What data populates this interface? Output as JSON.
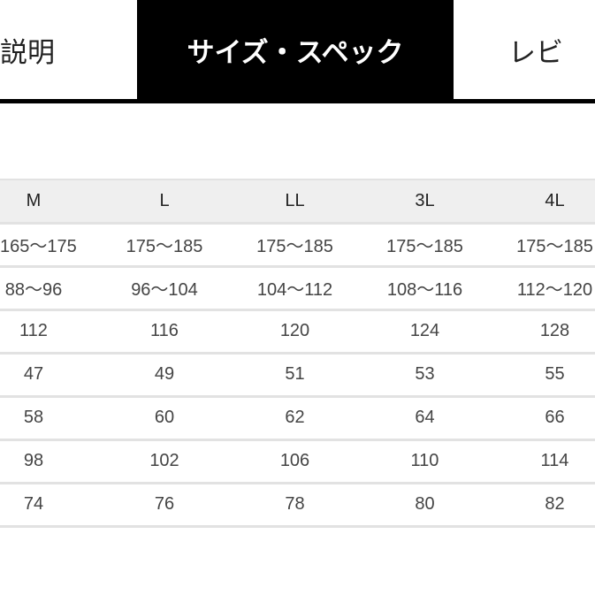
{
  "tabs": [
    {
      "label": "説明",
      "active": false
    },
    {
      "label": "サイズ・スペック",
      "active": true
    },
    {
      "label": "レビ",
      "active": false
    }
  ],
  "table": {
    "headers": [
      "M",
      "L",
      "LL",
      "3L",
      "4L"
    ],
    "rows": [
      [
        "165〜175",
        "175〜185",
        "175〜185",
        "175〜185",
        "175〜185"
      ],
      [
        "88〜96",
        "96〜104",
        "104〜112",
        "108〜116",
        "112〜120"
      ],
      [
        "112",
        "116",
        "120",
        "124",
        "128"
      ],
      [
        "47",
        "49",
        "51",
        "53",
        "55"
      ],
      [
        "58",
        "60",
        "62",
        "64",
        "66"
      ],
      [
        "98",
        "102",
        "106",
        "110",
        "114"
      ],
      [
        "74",
        "76",
        "78",
        "80",
        "82"
      ]
    ]
  }
}
